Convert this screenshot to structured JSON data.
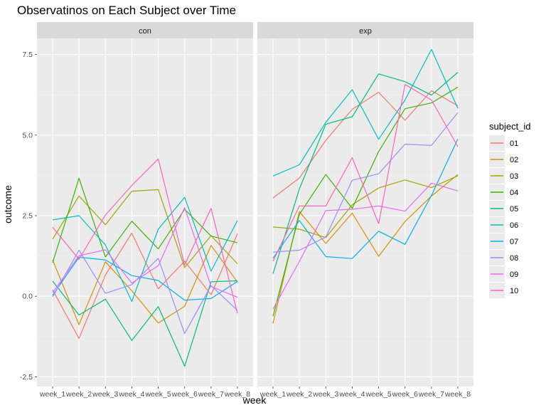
{
  "chart_data": {
    "type": "line",
    "title": "Observatinos on Each Subject over Time",
    "xlabel": "week",
    "ylabel": "outcome",
    "ylim": [
      -2.8,
      8.0
    ],
    "y_ticks": [
      -2.5,
      0,
      2.5,
      5,
      7.5
    ],
    "y_tick_labels": [
      "-2.5",
      "0.0",
      "2.5",
      "5.0",
      "7.5"
    ],
    "categories": [
      "week_1",
      "week_2",
      "week_3",
      "week_4",
      "week_5",
      "week_6",
      "week_7",
      "week_8"
    ],
    "grid": true,
    "legend_position": "right",
    "legend_title": "subject_id",
    "subjects": [
      "01",
      "02",
      "03",
      "04",
      "05",
      "06",
      "07",
      "08",
      "09",
      "10"
    ],
    "colors": [
      "#F8766D",
      "#D89000",
      "#A3A500",
      "#39B600",
      "#00BF7D",
      "#00BFC4",
      "#00B0F6",
      "#9590FF",
      "#E76BF3",
      "#FF62BC"
    ],
    "panels": [
      {
        "label": "con",
        "series": [
          {
            "name": "01",
            "values": [
              0.2,
              -1.31,
              0.66,
              1.96,
              0.23,
              1.09,
              0.05,
              1.94
            ]
          },
          {
            "name": "02",
            "values": [
              1.13,
              -0.88,
              1.07,
              0.17,
              -0.83,
              -0.31,
              1.58,
              0.44
            ]
          },
          {
            "name": "03",
            "values": [
              1.77,
              3.11,
              2.22,
              3.26,
              3.31,
              0.89,
              1.88,
              1.01
            ]
          },
          {
            "name": "04",
            "values": [
              1.04,
              3.66,
              1.22,
              2.33,
              1.47,
              2.7,
              1.87,
              1.66
            ]
          },
          {
            "name": "05",
            "values": [
              0.47,
              -0.58,
              -0.09,
              -1.37,
              -0.32,
              -2.17,
              0.45,
              0.48
            ]
          },
          {
            "name": "06",
            "values": [
              2.37,
              2.5,
              1.59,
              -0.16,
              2.08,
              3.07,
              0.78,
              2.35
            ]
          },
          {
            "name": "07",
            "values": [
              0.03,
              1.21,
              1.13,
              0.64,
              0.49,
              -0.12,
              -0.07,
              0.46
            ]
          },
          {
            "name": "08",
            "values": [
              -0.02,
              1.43,
              0.09,
              0.36,
              1.18,
              -1.16,
              0.33,
              -0.44
            ]
          },
          {
            "name": "09",
            "values": [
              0.11,
              1.26,
              1.44,
              0.41,
              0.95,
              2.75,
              0.3,
              -0.03
            ]
          },
          {
            "name": "10",
            "values": [
              2.14,
              1.15,
              2.52,
              3.44,
              4.26,
              0.97,
              2.73,
              -0.53
            ]
          }
        ]
      },
      {
        "label": "exp",
        "series": [
          {
            "name": "01",
            "values": [
              3.05,
              3.67,
              4.84,
              5.8,
              6.33,
              5.46,
              6.38,
              5.91
            ]
          },
          {
            "name": "02",
            "values": [
              -0.84,
              2.63,
              1.64,
              2.58,
              1.24,
              2.32,
              3.11,
              3.78
            ]
          },
          {
            "name": "03",
            "values": [
              2.15,
              2.08,
              1.82,
              2.84,
              3.36,
              3.61,
              3.37,
              3.74
            ]
          },
          {
            "name": "04",
            "values": [
              -0.62,
              2.54,
              3.78,
              2.73,
              4.49,
              5.82,
              6.0,
              6.49
            ]
          },
          {
            "name": "05",
            "values": [
              0.7,
              3.33,
              5.34,
              5.57,
              6.9,
              6.66,
              6.24,
              6.95
            ]
          },
          {
            "name": "06",
            "values": [
              3.73,
              4.08,
              5.4,
              6.41,
              4.87,
              6.09,
              7.66,
              5.83
            ]
          },
          {
            "name": "07",
            "values": [
              1.18,
              2.35,
              1.23,
              1.17,
              2.02,
              1.61,
              3.13,
              4.88
            ]
          },
          {
            "name": "08",
            "values": [
              1.37,
              1.43,
              1.84,
              3.6,
              3.8,
              4.72,
              4.68,
              5.7
            ]
          },
          {
            "name": "09",
            "values": [
              -0.4,
              1.08,
              2.66,
              2.7,
              2.8,
              2.64,
              3.51,
              3.27
            ]
          },
          {
            "name": "10",
            "values": [
              1.09,
              2.8,
              2.8,
              4.3,
              2.25,
              6.57,
              6.09,
              4.64
            ]
          }
        ]
      }
    ]
  }
}
